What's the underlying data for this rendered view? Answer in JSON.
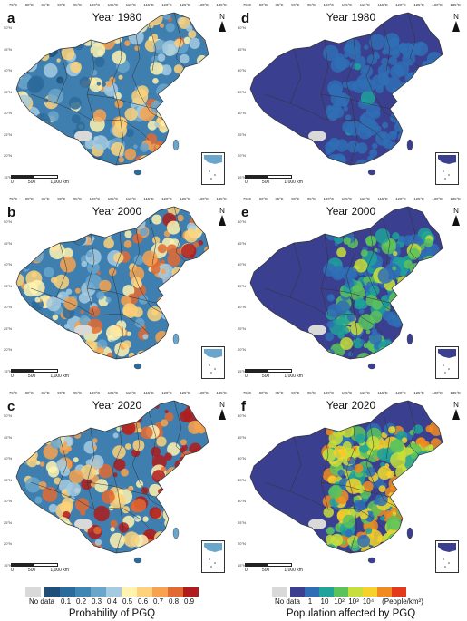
{
  "panels": [
    {
      "label": "a",
      "title": "Year 1980",
      "type": "probability",
      "intensity": 0.25
    },
    {
      "label": "d",
      "title": "Year 1980",
      "type": "population",
      "intensity": 0.15
    },
    {
      "label": "b",
      "title": "Year 2000",
      "type": "probability",
      "intensity": 0.45
    },
    {
      "label": "e",
      "title": "Year 2000",
      "type": "population",
      "intensity": 0.45
    },
    {
      "label": "c",
      "title": "Year 2020",
      "type": "probability",
      "intensity": 0.75
    },
    {
      "label": "f",
      "title": "Year 2020",
      "type": "population",
      "intensity": 0.85
    }
  ],
  "map_common": {
    "north_label": "N",
    "scale_labels": [
      "0",
      "500",
      "1,000 km"
    ],
    "lon_ticks": [
      "75°E",
      "80°E",
      "85°E",
      "90°E",
      "95°E",
      "100°E",
      "105°E",
      "110°E",
      "115°E",
      "120°E",
      "125°E",
      "130°E",
      "135°E"
    ],
    "lat_ticks": [
      "50°N",
      "45°N",
      "40°N",
      "35°N",
      "30°N",
      "25°N",
      "20°N",
      "15°N"
    ]
  },
  "legend_left": {
    "caption": "Probability of PGQ",
    "labels": [
      "No data",
      "0.1",
      "0.2",
      "0.3",
      "0.4",
      "0.5",
      "0.6",
      "0.7",
      "0.8",
      "0.9"
    ],
    "colors": [
      "#d9d9d9",
      "#1f4e79",
      "#2b6a9b",
      "#3f86b5",
      "#6aa6cc",
      "#a6cbe0",
      "#fff3b0",
      "#fdd27a",
      "#f6a24f",
      "#e06a32",
      "#b01c1c"
    ]
  },
  "legend_right": {
    "caption": "Population affected by PGQ",
    "labels": [
      "No data",
      "1",
      "10",
      "10²",
      "10³",
      "10⁴",
      "(People/km²)"
    ],
    "colors": [
      "#d9d9d9",
      "#3a3f8f",
      "#2f6eb5",
      "#1fa39b",
      "#5cc35a",
      "#c8de3a",
      "#f6d32a",
      "#f28b1f",
      "#e23a1a"
    ]
  }
}
